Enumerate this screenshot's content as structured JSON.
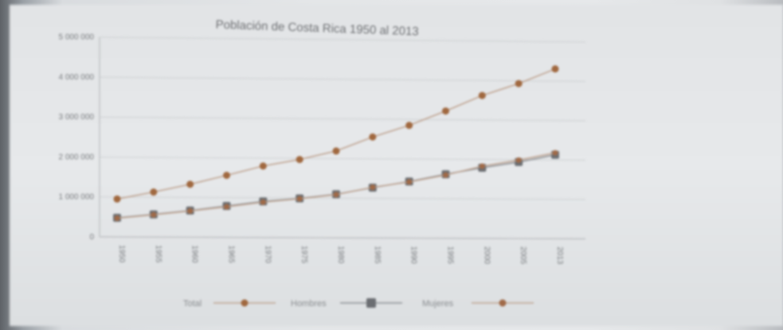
{
  "chart_data": {
    "type": "line",
    "title": "Población de Costa Rica 1950 al 2013",
    "categories": [
      "1950",
      "1955",
      "1960",
      "1965",
      "1970",
      "1975",
      "1980",
      "1985",
      "1990",
      "1995",
      "2000",
      "2005",
      "2013"
    ],
    "series": [
      {
        "name": "Total",
        "color": "#a0683f",
        "marker": "circle",
        "values": [
          950000,
          1130000,
          1330000,
          1560000,
          1800000,
          1970000,
          2190000,
          2550000,
          2850000,
          3220000,
          3620000,
          3930000,
          4310000
        ]
      },
      {
        "name": "Hombres",
        "color": "#6b6e72",
        "marker": "square",
        "values": [
          480000,
          570000,
          670000,
          790000,
          910000,
          990000,
          1100000,
          1270000,
          1430000,
          1620000,
          1790000,
          1940000,
          2130000
        ]
      },
      {
        "name": "Mujeres",
        "color": "#a06a48",
        "marker": "circle",
        "values": [
          470000,
          560000,
          660000,
          770000,
          890000,
          980000,
          1090000,
          1280000,
          1420000,
          1600000,
          1830000,
          1990000,
          2180000
        ]
      }
    ],
    "yticks": [
      0,
      1000000,
      2000000,
      3000000,
      4000000,
      5000000
    ],
    "ytick_labels": [
      "0",
      "1 000 000",
      "2 000 000",
      "3 000 000",
      "4 000 000",
      "5 000 000"
    ],
    "ylim": [
      0,
      5000000
    ],
    "grid": true,
    "legend": "bottom"
  }
}
